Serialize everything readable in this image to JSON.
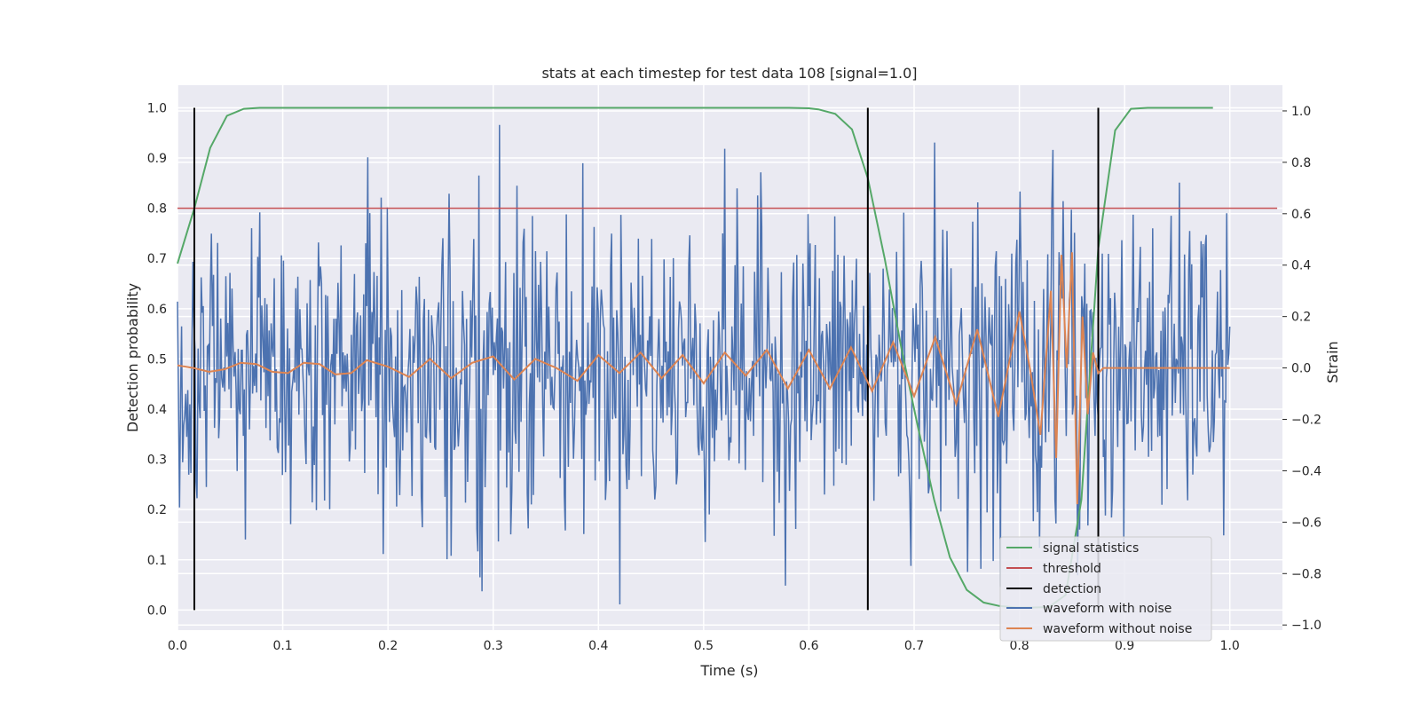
{
  "chart_data": {
    "type": "line",
    "title": "stats at each timestep for test data 108 [signal=1.0]",
    "xlabel": "Time (s)",
    "ylabel": "Detection probability",
    "y2label": "Strain",
    "xlim": [
      0.0,
      1.05
    ],
    "ylim": [
      -0.04,
      1.045
    ],
    "y2lim": [
      -1.02,
      1.1
    ],
    "x_ticks": [
      "0.0",
      "0.1",
      "0.2",
      "0.3",
      "0.4",
      "0.5",
      "0.6",
      "0.7",
      "0.8",
      "0.9",
      "1.0"
    ],
    "y_ticks": [
      "0.0",
      "0.1",
      "0.2",
      "0.3",
      "0.4",
      "0.5",
      "0.6",
      "0.7",
      "0.8",
      "0.9",
      "1.0"
    ],
    "y2_ticks": [
      "−1.0",
      "−0.8",
      "−0.6",
      "−0.4",
      "−0.2",
      "0.0",
      "0.2",
      "0.4",
      "0.6",
      "0.8",
      "1.0"
    ],
    "grid": true,
    "legend_position": "lower-right",
    "colors": {
      "plot_background": "#eaeaf2",
      "signal_statistics": "#55a868",
      "threshold": "#c44e52",
      "detection": "#000000",
      "waveform_with_noise": "#4c72b0",
      "waveform_without_noise": "#dd8452"
    },
    "series": [
      {
        "name": "signal statistics",
        "axis": "left",
        "x": [
          0.0,
          0.016,
          0.031,
          0.047,
          0.063,
          0.078,
          0.1,
          0.2,
          0.3,
          0.4,
          0.5,
          0.58,
          0.6,
          0.609,
          0.625,
          0.641,
          0.656,
          0.672,
          0.688,
          0.703,
          0.719,
          0.734,
          0.75,
          0.766,
          0.781,
          0.797,
          0.813,
          0.828,
          0.844,
          0.859,
          0.875,
          0.891,
          0.906,
          0.922,
          0.938,
          0.953,
          0.969,
          0.984
        ],
        "y": [
          0.69,
          0.8,
          0.92,
          0.984,
          0.998,
          1.0,
          1.0,
          1.0,
          1.0,
          1.0,
          1.0,
          1.0,
          0.999,
          0.997,
          0.988,
          0.957,
          0.86,
          0.7,
          0.52,
          0.37,
          0.22,
          0.105,
          0.04,
          0.015,
          0.008,
          0.005,
          0.005,
          0.006,
          0.03,
          0.22,
          0.72,
          0.955,
          0.998,
          1.0,
          1.0,
          1.0,
          1.0,
          1.0
        ]
      },
      {
        "name": "threshold",
        "axis": "left",
        "x": [
          0.0,
          1.045
        ],
        "y": [
          0.8,
          0.8
        ]
      },
      {
        "name": "detection",
        "axis": "left",
        "x": [
          0.016,
          0.656,
          0.875
        ],
        "y_range": [
          0.0,
          1.0
        ]
      },
      {
        "name": "waveform with noise",
        "axis": "right",
        "x_range": [
          0.0,
          1.0
        ],
        "n_points": 1024,
        "amplitude_std": 0.29,
        "y_range": [
          -0.92,
          1.0
        ]
      },
      {
        "name": "waveform without noise",
        "axis": "right",
        "x": [
          0.0,
          0.015,
          0.03,
          0.045,
          0.06,
          0.075,
          0.09,
          0.105,
          0.12,
          0.135,
          0.15,
          0.165,
          0.18,
          0.2,
          0.22,
          0.24,
          0.26,
          0.28,
          0.3,
          0.32,
          0.34,
          0.36,
          0.38,
          0.4,
          0.42,
          0.44,
          0.46,
          0.48,
          0.5,
          0.52,
          0.54,
          0.56,
          0.58,
          0.6,
          0.62,
          0.64,
          0.66,
          0.68,
          0.7,
          0.72,
          0.74,
          0.76,
          0.78,
          0.8,
          0.81,
          0.82,
          0.83,
          0.835,
          0.84,
          0.845,
          0.85,
          0.855,
          0.86,
          0.865,
          0.87,
          0.875,
          0.88,
          0.9,
          0.95,
          1.0
        ],
        "y": [
          0.01,
          0.0,
          -0.015,
          -0.005,
          0.02,
          0.015,
          -0.015,
          -0.02,
          0.02,
          0.015,
          -0.025,
          -0.02,
          0.03,
          0.005,
          -0.035,
          0.035,
          -0.04,
          0.02,
          0.045,
          -0.045,
          0.035,
          0.0,
          -0.05,
          0.05,
          -0.02,
          0.06,
          -0.04,
          0.05,
          -0.06,
          0.06,
          -0.03,
          0.07,
          -0.08,
          0.07,
          -0.08,
          0.08,
          -0.09,
          0.1,
          -0.11,
          0.12,
          -0.14,
          0.15,
          -0.19,
          0.22,
          0.0,
          -0.26,
          0.3,
          -0.35,
          0.44,
          0.0,
          0.45,
          -0.53,
          0.2,
          -0.18,
          0.06,
          -0.02,
          0.0,
          0.0,
          0.0,
          0.0
        ]
      }
    ],
    "legend": [
      "signal statistics",
      "threshold",
      "detection",
      "waveform with noise",
      "waveform without noise"
    ]
  }
}
